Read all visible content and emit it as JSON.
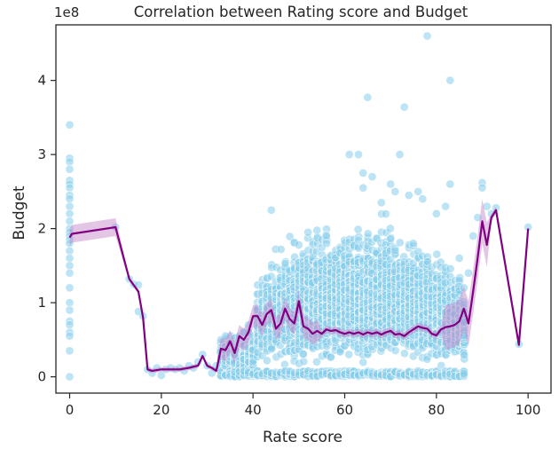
{
  "chart_data": {
    "type": "scatter",
    "title": "Correlation between Rating score and Budget",
    "xlabel": "Rate score",
    "ylabel": "Budget",
    "y_offset_label": "1e8",
    "y_scale": 100000000,
    "xlim": [
      -3,
      105
    ],
    "ylim": [
      -0.22,
      4.75
    ],
    "x_ticks": [
      0,
      20,
      40,
      60,
      80,
      100
    ],
    "y_ticks": [
      0,
      1,
      2,
      3,
      4
    ],
    "grid": false,
    "colors": {
      "scatter": "#87ceeb",
      "line": "#800080",
      "band": "#c080c8",
      "text": "#262626",
      "frame": "#262626"
    },
    "series": [
      {
        "type": "scatter",
        "note_units": "budget in units of 1e8",
        "points": [
          [
            0,
            3.4
          ],
          [
            0,
            2.95
          ],
          [
            0,
            2.9
          ],
          [
            0,
            2.8
          ],
          [
            0,
            2.65
          ],
          [
            0,
            2.6
          ],
          [
            0,
            2.55
          ],
          [
            0,
            2.45
          ],
          [
            0,
            2.4
          ],
          [
            0,
            2.3
          ],
          [
            0,
            2.2
          ],
          [
            0,
            2.1
          ],
          [
            0,
            2.0
          ],
          [
            0,
            1.95
          ],
          [
            0,
            1.9
          ],
          [
            0,
            1.85
          ],
          [
            0,
            1.8
          ],
          [
            0,
            1.7
          ],
          [
            0,
            1.6
          ],
          [
            0,
            1.5
          ],
          [
            0,
            1.4
          ],
          [
            0,
            1.2
          ],
          [
            0,
            1.0
          ],
          [
            0,
            0.9
          ],
          [
            0,
            0.75
          ],
          [
            0,
            0.7
          ],
          [
            0,
            0.6
          ],
          [
            0,
            0.55
          ],
          [
            0,
            0.35
          ],
          [
            0,
            0.0
          ],
          [
            10,
            2.02
          ],
          [
            13,
            1.32
          ],
          [
            14,
            1.25
          ],
          [
            15,
            1.24
          ],
          [
            15,
            0.88
          ],
          [
            16,
            0.82
          ],
          [
            17,
            0.1
          ],
          [
            18,
            0.05
          ],
          [
            19,
            0.12
          ],
          [
            20,
            0.02
          ],
          [
            21,
            0.1
          ],
          [
            22,
            0.12
          ],
          [
            23,
            0.1
          ],
          [
            24,
            0.12
          ],
          [
            25,
            0.08
          ],
          [
            26,
            0.15
          ],
          [
            27,
            0.12
          ],
          [
            28,
            0.2
          ],
          [
            29,
            0.3
          ],
          [
            30,
            0.15
          ],
          [
            31,
            0.05
          ],
          [
            32,
            0.15
          ],
          [
            33,
            0.5
          ],
          [
            34,
            0.55
          ],
          [
            35,
            0.45
          ],
          [
            36,
            0.3
          ],
          [
            37,
            0.55
          ],
          [
            38,
            0.6
          ],
          [
            39,
            0.7
          ],
          [
            44,
            2.25
          ],
          [
            50,
            1.78
          ],
          [
            52,
            1.95
          ],
          [
            56,
            1.9
          ],
          [
            61,
            3.0
          ],
          [
            63,
            3.0
          ],
          [
            64,
            2.75
          ],
          [
            64,
            2.55
          ],
          [
            65,
            3.77
          ],
          [
            66,
            2.7
          ],
          [
            68,
            2.35
          ],
          [
            70,
            2.6
          ],
          [
            71,
            2.5
          ],
          [
            72,
            3.0
          ],
          [
            73,
            3.64
          ],
          [
            74,
            2.45
          ],
          [
            76,
            2.5
          ],
          [
            77,
            2.4
          ],
          [
            78,
            4.6
          ],
          [
            80,
            2.2
          ],
          [
            82,
            2.3
          ],
          [
            83,
            2.6
          ],
          [
            83,
            4.0
          ],
          [
            85,
            1.6
          ],
          [
            86,
            1.2
          ],
          [
            87,
            1.4
          ],
          [
            88,
            1.9
          ],
          [
            89,
            2.15
          ],
          [
            90,
            2.62
          ],
          [
            90,
            2.55
          ],
          [
            91,
            2.3
          ],
          [
            92,
            2.2
          ],
          [
            93,
            2.28
          ],
          [
            98,
            0.44
          ],
          [
            100,
            2.02
          ]
        ]
      },
      {
        "type": "line",
        "points": [
          [
            0,
            1.88
          ],
          [
            0.5,
            1.93
          ],
          [
            10,
            2.02
          ],
          [
            13,
            1.32
          ],
          [
            15,
            1.15
          ],
          [
            16,
            0.8
          ],
          [
            17,
            0.1
          ],
          [
            18,
            0.08
          ],
          [
            20,
            0.1
          ],
          [
            22,
            0.1
          ],
          [
            24,
            0.1
          ],
          [
            26,
            0.12
          ],
          [
            28,
            0.15
          ],
          [
            29,
            0.28
          ],
          [
            30,
            0.15
          ],
          [
            31,
            0.12
          ],
          [
            32,
            0.08
          ],
          [
            33,
            0.38
          ],
          [
            34,
            0.36
          ],
          [
            35,
            0.48
          ],
          [
            36,
            0.32
          ],
          [
            37,
            0.55
          ],
          [
            38,
            0.5
          ],
          [
            39,
            0.6
          ],
          [
            40,
            0.82
          ],
          [
            41,
            0.82
          ],
          [
            42,
            0.7
          ],
          [
            43,
            0.85
          ],
          [
            44,
            0.9
          ],
          [
            45,
            0.65
          ],
          [
            46,
            0.72
          ],
          [
            47,
            0.92
          ],
          [
            48,
            0.78
          ],
          [
            49,
            0.72
          ],
          [
            50,
            1.02
          ],
          [
            51,
            0.68
          ],
          [
            52,
            0.65
          ],
          [
            53,
            0.58
          ],
          [
            54,
            0.62
          ],
          [
            55,
            0.58
          ],
          [
            56,
            0.64
          ],
          [
            57,
            0.62
          ],
          [
            58,
            0.63
          ],
          [
            59,
            0.6
          ],
          [
            60,
            0.58
          ],
          [
            61,
            0.6
          ],
          [
            62,
            0.58
          ],
          [
            63,
            0.6
          ],
          [
            64,
            0.57
          ],
          [
            65,
            0.6
          ],
          [
            66,
            0.58
          ],
          [
            67,
            0.6
          ],
          [
            68,
            0.57
          ],
          [
            69,
            0.6
          ],
          [
            70,
            0.62
          ],
          [
            71,
            0.57
          ],
          [
            72,
            0.58
          ],
          [
            73,
            0.55
          ],
          [
            74,
            0.6
          ],
          [
            75,
            0.64
          ],
          [
            76,
            0.68
          ],
          [
            77,
            0.66
          ],
          [
            78,
            0.65
          ],
          [
            79,
            0.58
          ],
          [
            80,
            0.56
          ],
          [
            81,
            0.64
          ],
          [
            82,
            0.67
          ],
          [
            83,
            0.68
          ],
          [
            84,
            0.7
          ],
          [
            85,
            0.75
          ],
          [
            86,
            0.92
          ],
          [
            87,
            0.72
          ],
          [
            88,
            1.15
          ],
          [
            89,
            1.6
          ],
          [
            90,
            2.1
          ],
          [
            91,
            1.78
          ],
          [
            92,
            2.15
          ],
          [
            93,
            2.25
          ],
          [
            98,
            0.43
          ],
          [
            100,
            2.0
          ]
        ]
      }
    ]
  }
}
